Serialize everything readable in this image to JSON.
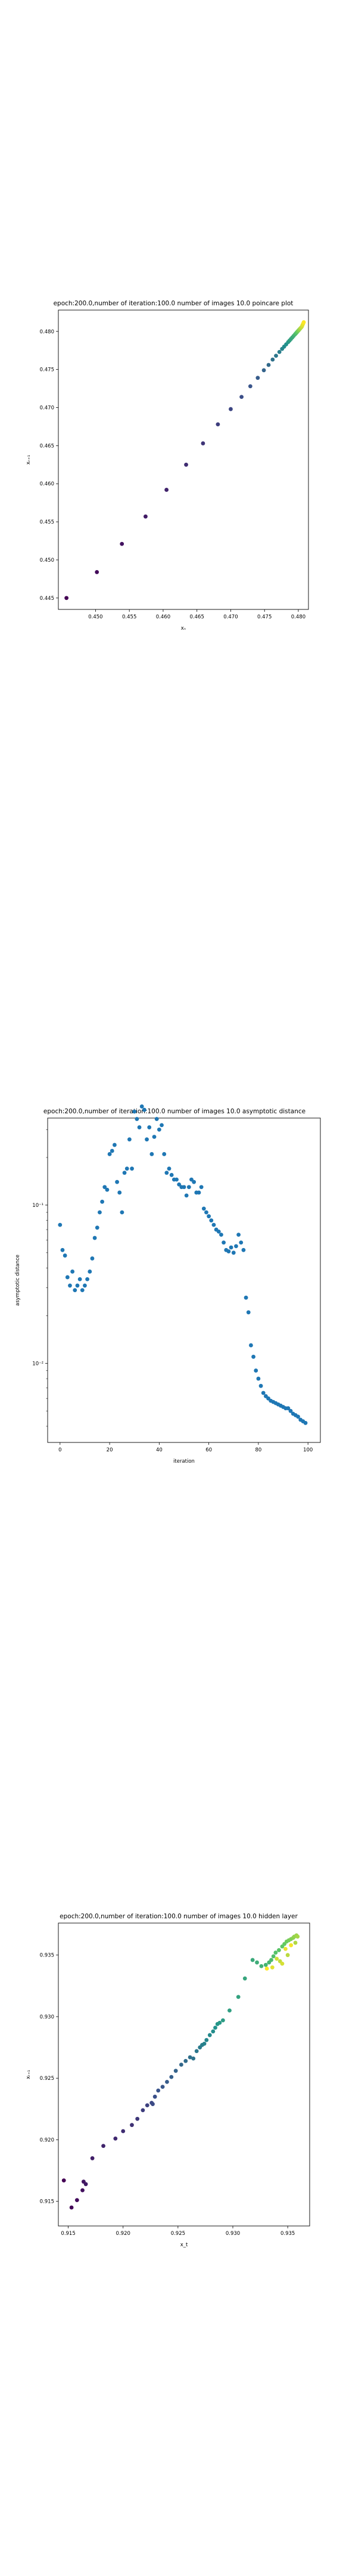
{
  "chart_data": [
    {
      "type": "scatter",
      "title": "epoch:200.0,number of iteration:100.0 number of images 10.0 poincare plot",
      "xlabel": "xₙ",
      "ylabel": "xₙ₊₁",
      "xlim": [
        0.4445,
        0.4815
      ],
      "ylim": [
        0.4435,
        0.4828
      ],
      "xticks": [
        0.45,
        0.455,
        0.46,
        0.465,
        0.47,
        0.475,
        0.48
      ],
      "yticks": [
        0.445,
        0.45,
        0.455,
        0.46,
        0.465,
        0.47,
        0.475,
        0.48
      ],
      "tick_decimals": 3,
      "colormap": "viridis",
      "points": [
        [
          0.4457,
          0.445
        ],
        [
          0.4502,
          0.4484
        ],
        [
          0.4539,
          0.4521
        ],
        [
          0.4574,
          0.4557
        ],
        [
          0.4605,
          0.4592
        ],
        [
          0.4634,
          0.4625
        ],
        [
          0.4659,
          0.4653
        ],
        [
          0.4681,
          0.4678
        ],
        [
          0.47,
          0.4698
        ],
        [
          0.4716,
          0.4714
        ],
        [
          0.4729,
          0.4728
        ],
        [
          0.474,
          0.4739
        ],
        [
          0.4749,
          0.4749
        ],
        [
          0.4756,
          0.4756
        ],
        [
          0.4762,
          0.4763
        ],
        [
          0.4767,
          0.4768
        ],
        [
          0.4772,
          0.4773
        ],
        [
          0.4776,
          0.4777
        ],
        [
          0.4779,
          0.478
        ],
        [
          0.4782,
          0.4783
        ],
        [
          0.4785,
          0.4786
        ],
        [
          0.4787,
          0.4788
        ],
        [
          0.4789,
          0.479
        ],
        [
          0.4791,
          0.4792
        ],
        [
          0.4793,
          0.4794
        ],
        [
          0.4795,
          0.4796
        ],
        [
          0.4796,
          0.4797
        ],
        [
          0.4797,
          0.4798
        ],
        [
          0.4798,
          0.4799
        ],
        [
          0.4799,
          0.48
        ],
        [
          0.48,
          0.4801
        ],
        [
          0.4801,
          0.4802
        ],
        [
          0.4802,
          0.4803
        ],
        [
          0.4803,
          0.4804
        ],
        [
          0.4804,
          0.4805
        ],
        [
          0.4805,
          0.4806
        ],
        [
          0.4806,
          0.4808
        ],
        [
          0.4807,
          0.481
        ],
        [
          0.4808,
          0.4812
        ]
      ]
    },
    {
      "type": "scatter",
      "title": "epoch:200.0,number of iteration:100.0  number of images 10.0 asymptotic distance",
      "xlabel": "iteration",
      "ylabel": "asymptotic distance",
      "xlim": [
        -5,
        105
      ],
      "ylim_log10": [
        -2.5,
        -0.45
      ],
      "yscale": "log",
      "xticks": [
        0,
        20,
        40,
        60,
        80,
        100
      ],
      "yticks_exp": [
        -2,
        -1
      ],
      "ytick_labels": [
        "10⁻²",
        "10⁻¹"
      ],
      "color": "#1f77b4",
      "x": [
        0,
        1,
        2,
        3,
        4,
        5,
        6,
        7,
        8,
        9,
        10,
        11,
        12,
        13,
        14,
        15,
        16,
        17,
        18,
        19,
        20,
        21,
        22,
        23,
        24,
        25,
        26,
        27,
        28,
        29,
        30,
        31,
        32,
        33,
        34,
        35,
        36,
        37,
        38,
        39,
        40,
        41,
        42,
        43,
        44,
        45,
        46,
        47,
        48,
        49,
        50,
        51,
        52,
        53,
        54,
        55,
        56,
        57,
        58,
        59,
        60,
        61,
        62,
        63,
        64,
        65,
        66,
        67,
        68,
        69,
        70,
        71,
        72,
        73,
        74,
        75,
        76,
        77,
        78,
        79,
        80,
        81,
        82,
        83,
        84,
        85,
        86,
        87,
        88,
        89,
        90,
        91,
        92,
        93,
        94,
        95,
        96,
        97,
        98,
        99
      ],
      "y": [
        0.075,
        0.052,
        0.048,
        0.035,
        0.031,
        0.038,
        0.029,
        0.031,
        0.034,
        0.029,
        0.031,
        0.034,
        0.038,
        0.046,
        0.062,
        0.072,
        0.09,
        0.105,
        0.13,
        0.125,
        0.21,
        0.22,
        0.24,
        0.14,
        0.12,
        0.09,
        0.16,
        0.17,
        0.26,
        0.17,
        0.39,
        0.35,
        0.31,
        0.42,
        0.4,
        0.26,
        0.31,
        0.21,
        0.27,
        0.35,
        0.3,
        0.32,
        0.21,
        0.16,
        0.17,
        0.155,
        0.145,
        0.145,
        0.135,
        0.13,
        0.13,
        0.115,
        0.13,
        0.145,
        0.14,
        0.12,
        0.12,
        0.13,
        0.095,
        0.09,
        0.085,
        0.08,
        0.075,
        0.07,
        0.068,
        0.065,
        0.058,
        0.052,
        0.051,
        0.054,
        0.05,
        0.055,
        0.065,
        0.058,
        0.052,
        0.026,
        0.021,
        0.013,
        0.011,
        0.009,
        0.008,
        0.0072,
        0.0065,
        0.0062,
        0.006,
        0.0058,
        0.0057,
        0.0056,
        0.0055,
        0.0054,
        0.0053,
        0.0052,
        0.0052,
        0.005,
        0.0048,
        0.0047,
        0.0046,
        0.0044,
        0.0043,
        0.0042
      ]
    },
    {
      "type": "scatter",
      "title": "epoch:200.0,number of iteration:100.0  number of images 10.0 hidden layer",
      "xlabel": "x_t",
      "ylabel": "xₜ₊₁",
      "xlim": [
        0.9141,
        0.937
      ],
      "ylim": [
        0.913,
        0.9376
      ],
      "xticks": [
        0.915,
        0.92,
        0.925,
        0.93,
        0.935
      ],
      "yticks": [
        0.915,
        0.92,
        0.925,
        0.93,
        0.935
      ],
      "tick_decimals": 3,
      "colormap": "viridis",
      "points": [
        [
          0.9146,
          0.9167
        ],
        [
          0.9153,
          0.9145
        ],
        [
          0.9158,
          0.9151
        ],
        [
          0.9163,
          0.9159
        ],
        [
          0.9164,
          0.9166
        ],
        [
          0.9166,
          0.9164
        ],
        [
          0.9172,
          0.9185
        ],
        [
          0.9182,
          0.9195
        ],
        [
          0.9193,
          0.9201
        ],
        [
          0.92,
          0.9207
        ],
        [
          0.9208,
          0.9212
        ],
        [
          0.9213,
          0.9217
        ],
        [
          0.9218,
          0.9224
        ],
        [
          0.9222,
          0.9228
        ],
        [
          0.9226,
          0.923
        ],
        [
          0.9227,
          0.9229
        ],
        [
          0.9229,
          0.9235
        ],
        [
          0.9232,
          0.924
        ],
        [
          0.9236,
          0.9243
        ],
        [
          0.924,
          0.9247
        ],
        [
          0.9244,
          0.9251
        ],
        [
          0.9248,
          0.9256
        ],
        [
          0.9253,
          0.9261
        ],
        [
          0.9257,
          0.9264
        ],
        [
          0.9261,
          0.9267
        ],
        [
          0.9264,
          0.9266
        ],
        [
          0.9267,
          0.9272
        ],
        [
          0.927,
          0.9275
        ],
        [
          0.9272,
          0.9277
        ],
        [
          0.9274,
          0.9278
        ],
        [
          0.9276,
          0.9281
        ],
        [
          0.9279,
          0.9285
        ],
        [
          0.9282,
          0.9288
        ],
        [
          0.9284,
          0.9291
        ],
        [
          0.9286,
          0.9294
        ],
        [
          0.9288,
          0.9295
        ],
        [
          0.9291,
          0.9297
        ],
        [
          0.9297,
          0.9305
        ],
        [
          0.9305,
          0.9316
        ],
        [
          0.9311,
          0.9331
        ],
        [
          0.9318,
          0.9346
        ],
        [
          0.9322,
          0.9344
        ],
        [
          0.9326,
          0.9341
        ],
        [
          0.933,
          0.9342
        ],
        [
          0.9333,
          0.9344
        ],
        [
          0.9335,
          0.9346
        ],
        [
          0.9337,
          0.9349
        ],
        [
          0.9339,
          0.9352
        ],
        [
          0.9342,
          0.9354
        ],
        [
          0.9345,
          0.9357
        ],
        [
          0.9347,
          0.9359
        ],
        [
          0.9349,
          0.9361
        ],
        [
          0.9351,
          0.9362
        ],
        [
          0.9353,
          0.9363
        ],
        [
          0.9355,
          0.9364
        ],
        [
          0.9356,
          0.9365
        ],
        [
          0.9358,
          0.9366
        ],
        [
          0.9359,
          0.9365
        ],
        [
          0.9357,
          0.936
        ],
        [
          0.935,
          0.935
        ],
        [
          0.9343,
          0.9345
        ],
        [
          0.934,
          0.9347
        ],
        [
          0.9345,
          0.9343
        ],
        [
          0.9336,
          0.934
        ],
        [
          0.9348,
          0.9355
        ],
        [
          0.9353,
          0.9358
        ],
        [
          0.9331,
          0.9339
        ]
      ]
    }
  ]
}
